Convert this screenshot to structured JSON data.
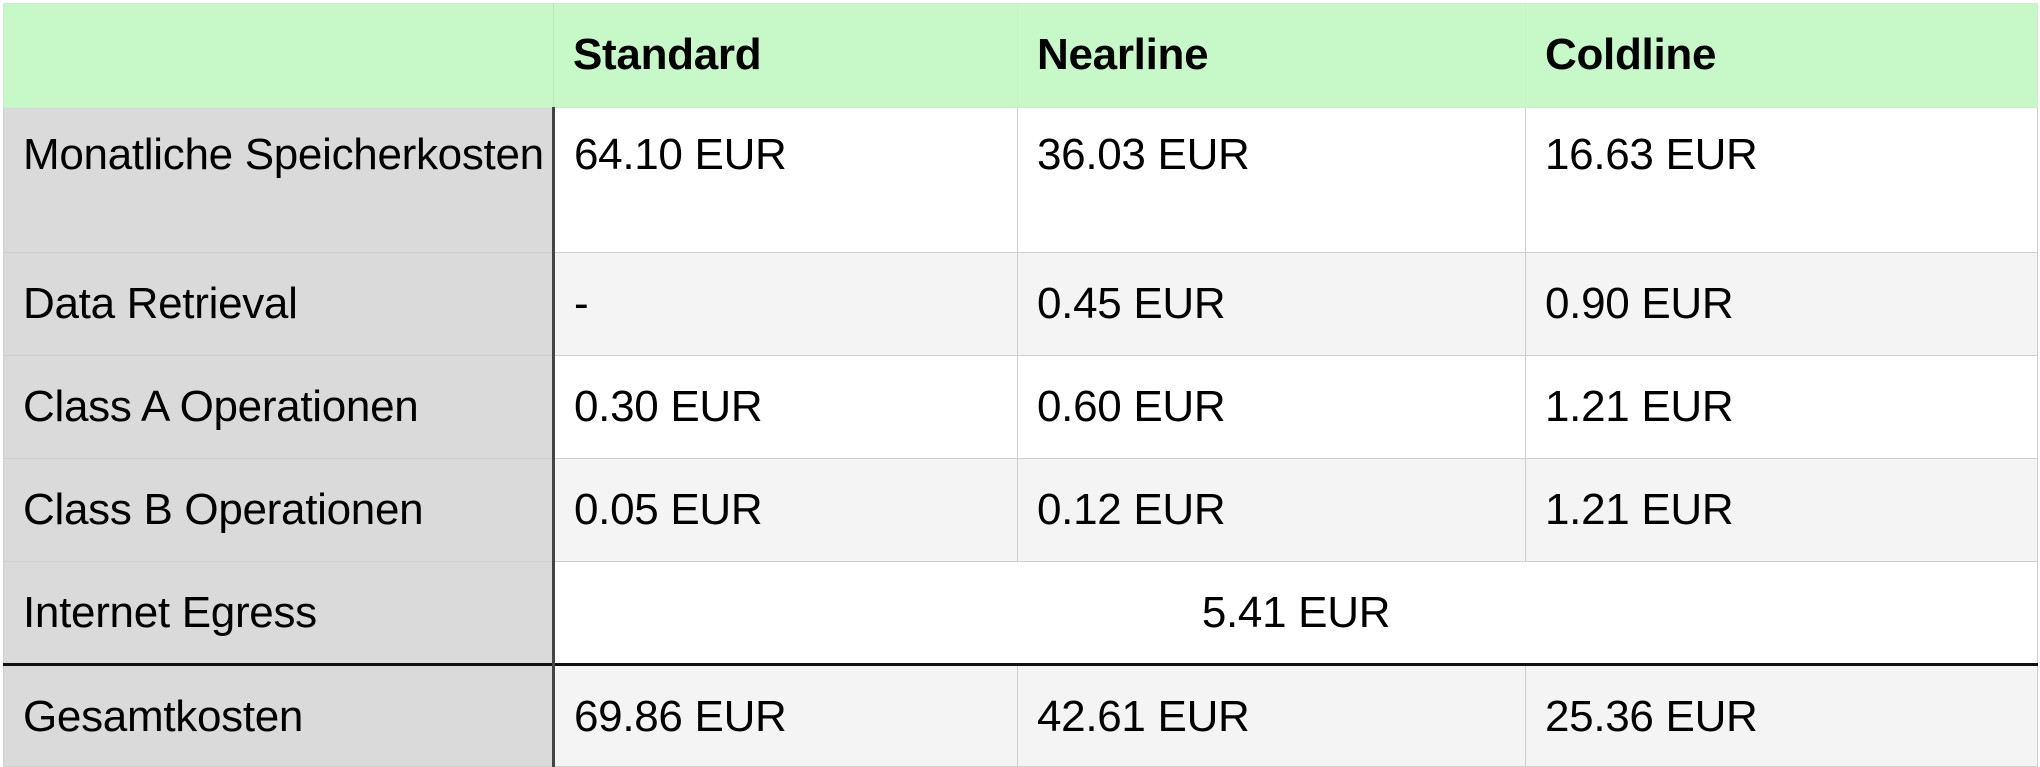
{
  "table": {
    "columns": [
      "",
      "Standard",
      "Nearline",
      "Coldline"
    ],
    "rows": [
      {
        "label": "Monatliche Speicherkosten",
        "values": [
          "64.10 EUR",
          "36.03 EUR",
          "16.63 EUR"
        ]
      },
      {
        "label": "Data Retrieval",
        "values": [
          "-",
          "0.45 EUR",
          "0.90 EUR"
        ]
      },
      {
        "label": "Class A Operationen",
        "values": [
          "0.30 EUR",
          "0.60 EUR",
          "1.21 EUR"
        ]
      },
      {
        "label": "Class B Operationen",
        "values": [
          "0.05 EUR",
          "0.12 EUR",
          "1.21 EUR"
        ]
      },
      {
        "label": "Internet Egress",
        "merged_value": "5.41 EUR"
      }
    ],
    "total": {
      "label": "Gesamtkosten",
      "values": [
        "69.86 EUR",
        "42.61 EUR",
        "25.36 EUR"
      ]
    }
  },
  "colors": {
    "header_background": "#c6f8c8",
    "label_column_background": "#dadada",
    "alternate_row_background": "#f4f4f4"
  }
}
